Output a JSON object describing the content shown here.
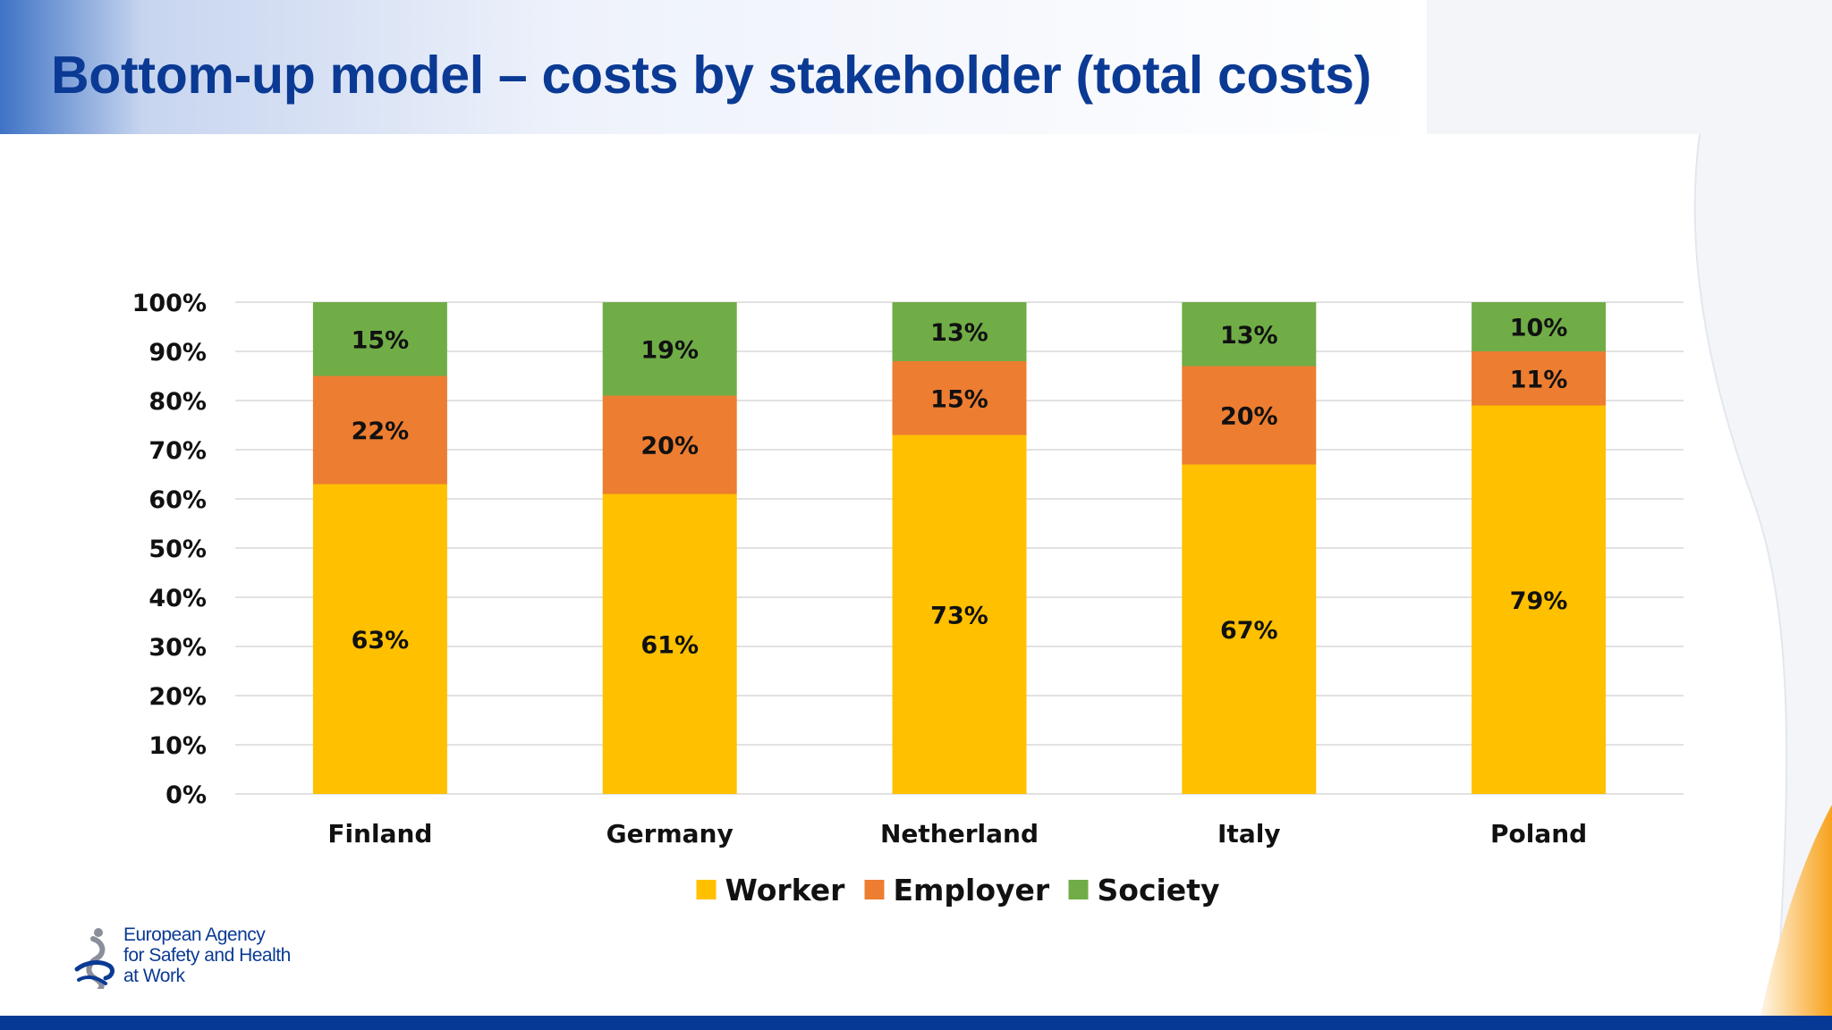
{
  "slide": {
    "title": "Bottom-up model – costs by stakeholder (total costs)",
    "colors": {
      "title": "#0b3a94",
      "bottom_bar": "#063896",
      "accent_orange": "#f7a21b"
    }
  },
  "logo": {
    "line1": "European Agency",
    "line2": "for Safety and Health",
    "line3": "at Work",
    "icon": "eu-osha-figure-icon"
  },
  "chart_data": {
    "type": "bar",
    "stacked": true,
    "categories": [
      "Finland",
      "Germany",
      "Netherland",
      "Italy",
      "Poland"
    ],
    "series": [
      {
        "name": "Worker",
        "color": "#ffc000",
        "values": [
          63,
          61,
          73,
          67,
          79
        ]
      },
      {
        "name": "Employer",
        "color": "#ed7d31",
        "values": [
          22,
          20,
          15,
          20,
          11
        ]
      },
      {
        "name": "Society",
        "color": "#70ad47",
        "values": [
          15,
          19,
          13,
          13,
          10
        ]
      }
    ],
    "ylim": [
      0,
      100
    ],
    "yticks": [
      "0%",
      "10%",
      "20%",
      "30%",
      "40%",
      "50%",
      "60%",
      "70%",
      "80%",
      "90%",
      "100%"
    ],
    "data_labels": [
      [
        "63%",
        "61%",
        "73%",
        "67%",
        "79%"
      ],
      [
        "22%",
        "20%",
        "15%",
        "20%",
        "11%"
      ],
      [
        "15%",
        "19%",
        "13%",
        "13%",
        "10%"
      ]
    ],
    "grid": true,
    "legend": "bottom",
    "title": "",
    "xlabel": "",
    "ylabel": ""
  }
}
